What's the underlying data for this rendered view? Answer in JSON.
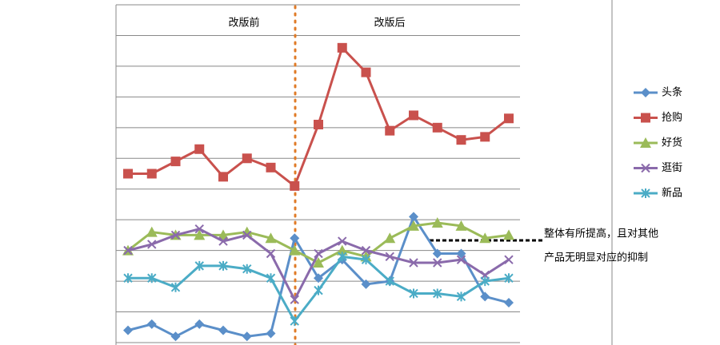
{
  "chart_data": {
    "type": "line",
    "categories": [
      null,
      null,
      null,
      null,
      null,
      null,
      null,
      null,
      null,
      null,
      null,
      null,
      null,
      null,
      null,
      null,
      null
    ],
    "ylim": [
      0,
      11
    ],
    "yticks": [
      0,
      1,
      2,
      3,
      4,
      5,
      6,
      7,
      8,
      9,
      10,
      11
    ],
    "grid": true,
    "series": [
      {
        "name": "头条",
        "color": "#5b8fc9",
        "marker": "diamond",
        "values": [
          0.4,
          0.6,
          0.2,
          0.6,
          0.4,
          0.2,
          0.3,
          3.4,
          2.1,
          2.7,
          1.9,
          2.0,
          4.1,
          2.9,
          2.9,
          1.5,
          1.3
        ]
      },
      {
        "name": "抢购",
        "color": "#c9514d",
        "marker": "square",
        "values": [
          5.5,
          5.5,
          5.9,
          6.3,
          5.4,
          6.0,
          5.7,
          5.1,
          7.1,
          9.6,
          8.8,
          6.9,
          7.4,
          7.0,
          6.6,
          6.7,
          7.3
        ]
      },
      {
        "name": "好货",
        "color": "#9bbb59",
        "marker": "triangle",
        "values": [
          3.0,
          3.6,
          3.5,
          3.5,
          3.5,
          3.6,
          3.4,
          3.0,
          2.6,
          3.0,
          2.8,
          3.4,
          3.8,
          3.9,
          3.8,
          3.4,
          3.5
        ]
      },
      {
        "name": "逛街",
        "color": "#8a6aab",
        "marker": "x",
        "values": [
          3.0,
          3.2,
          3.5,
          3.7,
          3.3,
          3.5,
          2.9,
          1.4,
          2.9,
          3.3,
          3.0,
          2.8,
          2.6,
          2.6,
          2.7,
          2.2,
          2.7
        ]
      },
      {
        "name": "新品",
        "color": "#4bacc6",
        "marker": "star",
        "values": [
          2.1,
          2.1,
          1.8,
          2.5,
          2.5,
          2.4,
          2.1,
          0.7,
          1.7,
          2.8,
          2.7,
          2.0,
          1.6,
          1.6,
          1.5,
          2.0,
          2.1
        ]
      }
    ],
    "annotations": [
      "改版前",
      "改版后",
      "整体有所提高，且对其他",
      "产品无明显对应的抑制"
    ]
  }
}
